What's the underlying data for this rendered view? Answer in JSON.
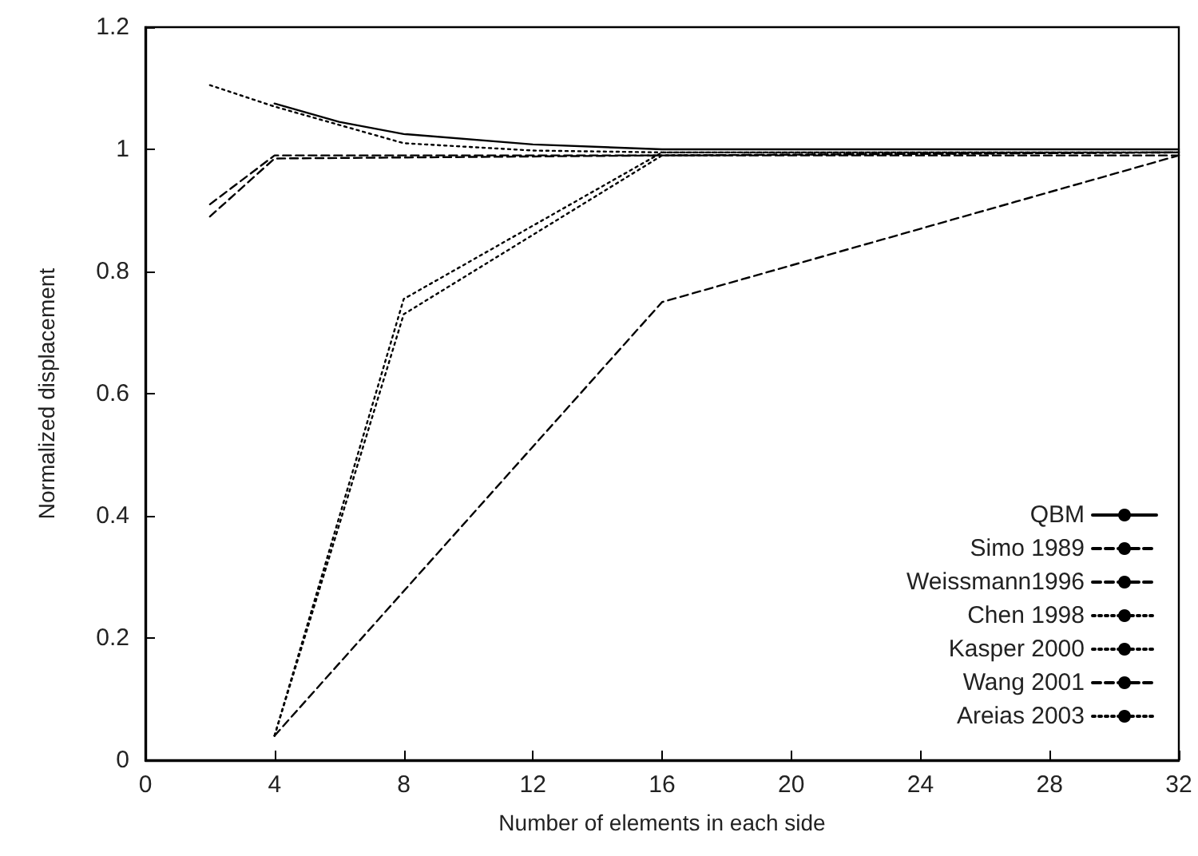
{
  "chart_data": {
    "type": "line",
    "xlabel": "Number of elements in each side",
    "ylabel": "Normalized displacement",
    "xlim": [
      0,
      32
    ],
    "xticks": [
      0,
      4,
      8,
      12,
      16,
      20,
      24,
      28,
      32
    ],
    "ylim": [
      0,
      1.2
    ],
    "yticks": [
      0,
      0.2,
      0.4,
      0.6,
      0.8,
      1,
      1.2
    ],
    "grid": false,
    "legend": "bottom right",
    "marker": "none",
    "series": [
      {
        "name": "QBM",
        "color": "#000000",
        "line_style": "solid",
        "x": [
          4,
          6,
          8,
          12,
          16,
          32
        ],
        "values": [
          1.075,
          1.045,
          1.025,
          1.008,
          1.0,
          1.0
        ]
      },
      {
        "name": "Simo 1989",
        "color": "#000000",
        "line_style": "dashed",
        "x": [
          2,
          4,
          16,
          32
        ],
        "values": [
          0.91,
          0.99,
          0.99,
          0.995
        ]
      },
      {
        "name": "Weissmann1996",
        "color": "#000000",
        "line_style": "dashed",
        "x": [
          4,
          16,
          32
        ],
        "values": [
          0.04,
          0.75,
          0.99
        ]
      },
      {
        "name": "Chen 1998",
        "color": "#000000",
        "line_style": "dotted",
        "x": [
          4,
          8,
          16,
          32
        ],
        "values": [
          0.04,
          0.755,
          0.995,
          0.995
        ]
      },
      {
        "name": "Kasper 2000",
        "color": "#000000",
        "line_style": "dotted",
        "x": [
          4,
          8,
          16,
          32
        ],
        "values": [
          0.04,
          0.73,
          0.99,
          0.995
        ]
      },
      {
        "name": "Wang 2001",
        "color": "#000000",
        "line_style": "dashed",
        "x": [
          2,
          4,
          16,
          32
        ],
        "values": [
          0.89,
          0.985,
          0.99,
          0.99
        ]
      },
      {
        "name": "Areias 2003",
        "color": "#000000",
        "line_style": "dotted",
        "x": [
          2,
          4,
          8,
          12,
          16,
          32
        ],
        "values": [
          1.105,
          1.07,
          1.01,
          0.998,
          0.995,
          0.995
        ]
      }
    ]
  }
}
